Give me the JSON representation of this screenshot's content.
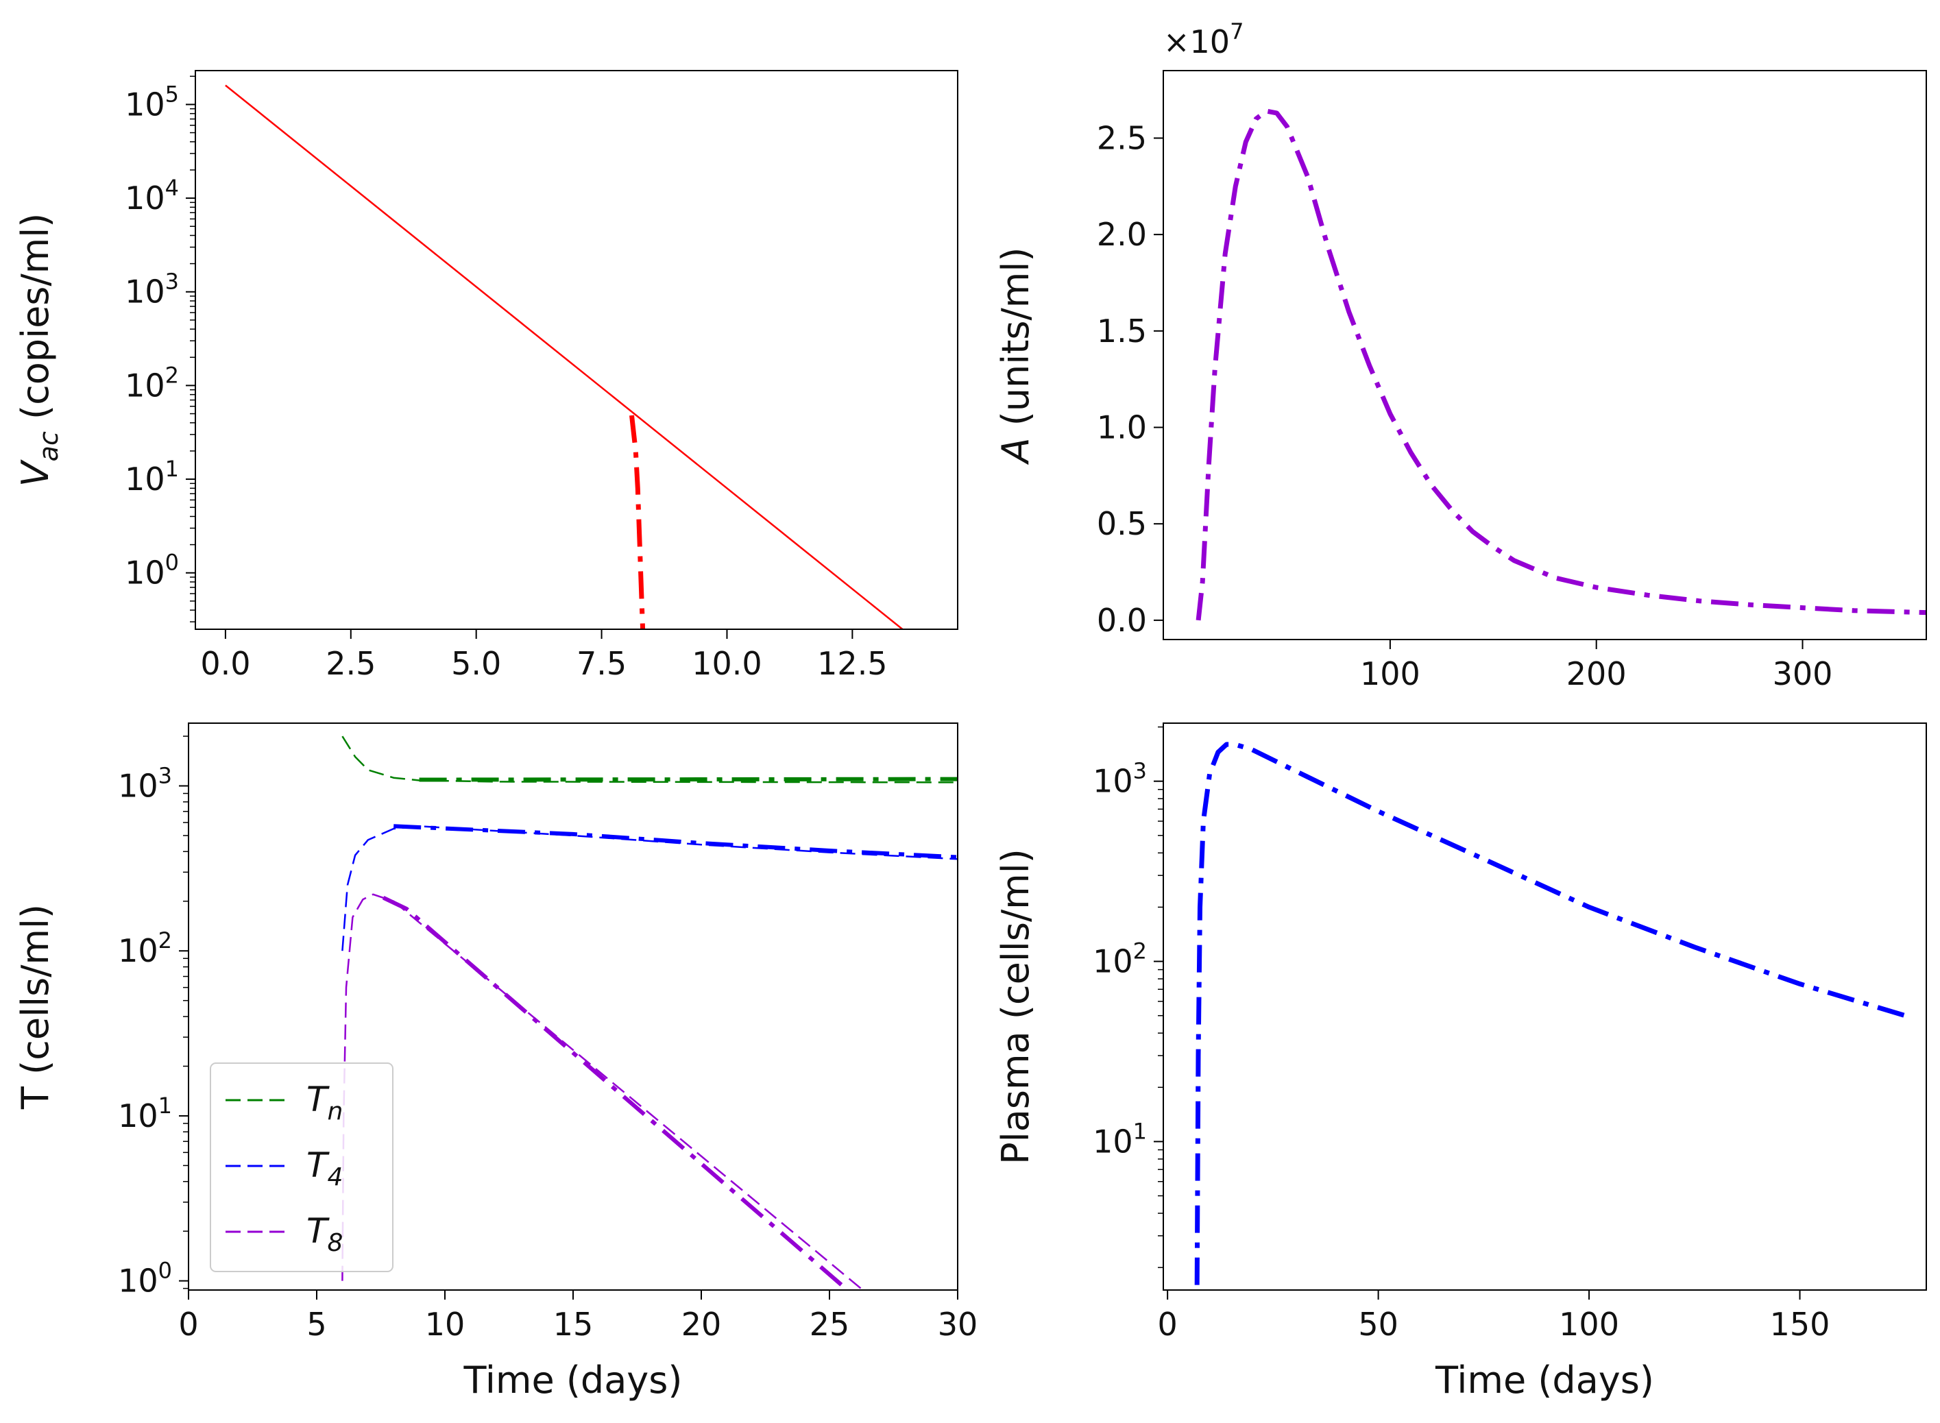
{
  "chart_data": [
    {
      "id": "vac",
      "type": "line",
      "title": "",
      "xlabel": "",
      "ylabel": "V_ac (copies/ml)",
      "ylabel_main": "V",
      "ylabel_sub": "ac",
      "ylabel_rest": " (copies/ml)",
      "xscale": "linear",
      "yscale": "log",
      "xlim": [
        -0.6,
        14.6
      ],
      "ylim": [
        0.25,
        230000
      ],
      "xticks": [
        0,
        2.5,
        5,
        7.5,
        10,
        12.5
      ],
      "xtick_labels": [
        "0.0",
        "2.5",
        "5.0",
        "7.5",
        "10.0",
        "12.5"
      ],
      "yticks": [
        1,
        10,
        100,
        1000,
        10000,
        100000
      ],
      "ytick_labels": [
        {
          "base": "10",
          "exp": "0"
        },
        {
          "base": "10",
          "exp": "1"
        },
        {
          "base": "10",
          "exp": "2"
        },
        {
          "base": "10",
          "exp": "3"
        },
        {
          "base": "10",
          "exp": "4"
        },
        {
          "base": "10",
          "exp": "5"
        }
      ],
      "series": [
        {
          "name": "solid",
          "color": "#ff0000",
          "style": "solid",
          "width": 2.5,
          "points": [
            [
              0,
              160000
            ],
            [
              13.5,
              0.25
            ]
          ]
        },
        {
          "name": "dashdot",
          "color": "#ff0000",
          "style": "dashdot",
          "width": 7,
          "points": [
            [
              8.1,
              48
            ],
            [
              8.18,
              20
            ],
            [
              8.22,
              8
            ],
            [
              8.26,
              2
            ],
            [
              8.3,
              0.5
            ],
            [
              8.32,
              0.25
            ]
          ]
        }
      ],
      "legend": []
    },
    {
      "id": "antibody",
      "type": "line",
      "title": "",
      "xlabel": "",
      "ylabel": "A (units/ml)",
      "ylabel_main": "A",
      "ylabel_sub": "",
      "ylabel_rest": " (units/ml)",
      "xscale": "linear",
      "yscale": "linear",
      "xlim": [
        -10,
        360
      ],
      "ylim": [
        -0.1,
        2.85
      ],
      "offset_text": {
        "base": "×10",
        "exp": "7"
      },
      "xticks": [
        100,
        200,
        300
      ],
      "xtick_labels": [
        "100",
        "200",
        "300"
      ],
      "yticks": [
        0,
        0.5,
        1,
        1.5,
        2,
        2.5
      ],
      "ytick_labels": [
        "0.0",
        "0.5",
        "1.0",
        "1.5",
        "2.0",
        "2.5"
      ],
      "series": [
        {
          "name": "A",
          "color": "#9400d3",
          "style": "dashdot",
          "width": 7,
          "points": [
            [
              7,
              0
            ],
            [
              9,
              0.2
            ],
            [
              12,
              0.8
            ],
            [
              15,
              1.3
            ],
            [
              20,
              1.9
            ],
            [
              25,
              2.25
            ],
            [
              30,
              2.48
            ],
            [
              35,
              2.6
            ],
            [
              40,
              2.64
            ],
            [
              45,
              2.63
            ],
            [
              50,
              2.56
            ],
            [
              60,
              2.3
            ],
            [
              70,
              1.93
            ],
            [
              80,
              1.6
            ],
            [
              90,
              1.32
            ],
            [
              100,
              1.07
            ],
            [
              110,
              0.87
            ],
            [
              120,
              0.7
            ],
            [
              130,
              0.57
            ],
            [
              140,
              0.46
            ],
            [
              150,
              0.38
            ],
            [
              160,
              0.31
            ],
            [
              180,
              0.22
            ],
            [
              200,
              0.17
            ],
            [
              225,
              0.13
            ],
            [
              250,
              0.1
            ],
            [
              275,
              0.08
            ],
            [
              300,
              0.065
            ],
            [
              325,
              0.05
            ],
            [
              360,
              0.04
            ]
          ]
        }
      ],
      "legend": []
    },
    {
      "id": "tcells",
      "type": "line",
      "title": "",
      "xlabel": "Time (days)",
      "ylabel": "T (cells/ml)",
      "ylabel_main": "T (cells/ml)",
      "ylabel_sub": "",
      "ylabel_rest": "",
      "xscale": "linear",
      "yscale": "log",
      "xlim": [
        0,
        30
      ],
      "ylim": [
        0.88,
        2400
      ],
      "xticks": [
        0,
        5,
        10,
        15,
        20,
        25,
        30
      ],
      "xtick_labels": [
        "0",
        "5",
        "10",
        "15",
        "20",
        "25",
        "30"
      ],
      "yticks": [
        1,
        10,
        100,
        1000
      ],
      "ytick_labels": [
        {
          "base": "10",
          "exp": "0"
        },
        {
          "base": "10",
          "exp": "1"
        },
        {
          "base": "10",
          "exp": "2"
        },
        {
          "base": "10",
          "exp": "3"
        }
      ],
      "series": [
        {
          "name": "Tn dashed",
          "color": "#008000",
          "style": "dashed",
          "width": 2.5,
          "points": [
            [
              6,
              2000
            ],
            [
              6.5,
              1500
            ],
            [
              7,
              1250
            ],
            [
              8,
              1120
            ],
            [
              9,
              1080
            ],
            [
              12,
              1060
            ],
            [
              30,
              1050
            ]
          ]
        },
        {
          "name": "Tn dashdot",
          "color": "#008000",
          "style": "dashdot",
          "width": 6,
          "points": [
            [
              9,
              1090
            ],
            [
              30,
              1100
            ]
          ]
        },
        {
          "name": "T4 dashed",
          "color": "#0000ff",
          "style": "dashed",
          "width": 2.5,
          "points": [
            [
              6,
              100
            ],
            [
              6.2,
              250
            ],
            [
              6.5,
              380
            ],
            [
              7,
              470
            ],
            [
              8,
              550
            ],
            [
              9,
              570
            ],
            [
              15,
              500
            ],
            [
              20,
              440
            ],
            [
              25,
              395
            ],
            [
              30,
              360
            ]
          ]
        },
        {
          "name": "T4 dashdot",
          "color": "#0000ff",
          "style": "dashdot",
          "width": 6,
          "points": [
            [
              8,
              570
            ],
            [
              15,
              510
            ],
            [
              20,
              450
            ],
            [
              25,
              405
            ],
            [
              30,
              370
            ]
          ]
        },
        {
          "name": "T8 dashed",
          "color": "#9400d3",
          "style": "dashed",
          "width": 2.5,
          "points": [
            [
              6,
              1
            ],
            [
              6.05,
              10
            ],
            [
              6.15,
              60
            ],
            [
              6.4,
              160
            ],
            [
              6.8,
              205
            ],
            [
              7.2,
              220
            ],
            [
              8,
              200
            ],
            [
              26.3,
              0.88
            ]
          ]
        },
        {
          "name": "T8 dashdot",
          "color": "#9400d3",
          "style": "dashdot",
          "width": 6,
          "points": [
            [
              7.6,
              210
            ],
            [
              8.5,
              180
            ],
            [
              25.7,
              0.88
            ]
          ]
        }
      ],
      "legend": [
        {
          "label_main": "T",
          "label_sub": "n",
          "color": "#008000"
        },
        {
          "label_main": "T",
          "label_sub": "4",
          "color": "#0000ff"
        },
        {
          "label_main": "T",
          "label_sub": "8",
          "color": "#9400d3"
        }
      ],
      "legend_position": "lower-left"
    },
    {
      "id": "plasma",
      "type": "line",
      "title": "",
      "xlabel": "Time (days)",
      "ylabel": "Plasma (cells/ml)",
      "ylabel_main": "Plasma (cells/ml)",
      "ylabel_sub": "",
      "ylabel_rest": "",
      "xscale": "linear",
      "yscale": "log",
      "xlim": [
        -1,
        180
      ],
      "ylim": [
        1.5,
        2100
      ],
      "xticks": [
        0,
        50,
        100,
        150
      ],
      "xtick_labels": [
        "0",
        "50",
        "100",
        "150"
      ],
      "yticks": [
        10,
        100,
        1000
      ],
      "ytick_labels": [
        {
          "base": "10",
          "exp": "1"
        },
        {
          "base": "10",
          "exp": "2"
        },
        {
          "base": "10",
          "exp": "3"
        }
      ],
      "series": [
        {
          "name": "Plasma",
          "color": "#0000ff",
          "style": "dashdot",
          "width": 7,
          "points": [
            [
              7,
              1.6
            ],
            [
              7.3,
              30
            ],
            [
              7.7,
              200
            ],
            [
              8.5,
              600
            ],
            [
              10,
              1100
            ],
            [
              12,
              1450
            ],
            [
              14,
              1600
            ],
            [
              16,
              1600
            ],
            [
              20,
              1500
            ],
            [
              30,
              1150
            ],
            [
              50,
              680
            ],
            [
              75,
              370
            ],
            [
              100,
              200
            ],
            [
              125,
              120
            ],
            [
              150,
              75
            ],
            [
              175,
              50
            ]
          ]
        }
      ],
      "legend": []
    }
  ]
}
